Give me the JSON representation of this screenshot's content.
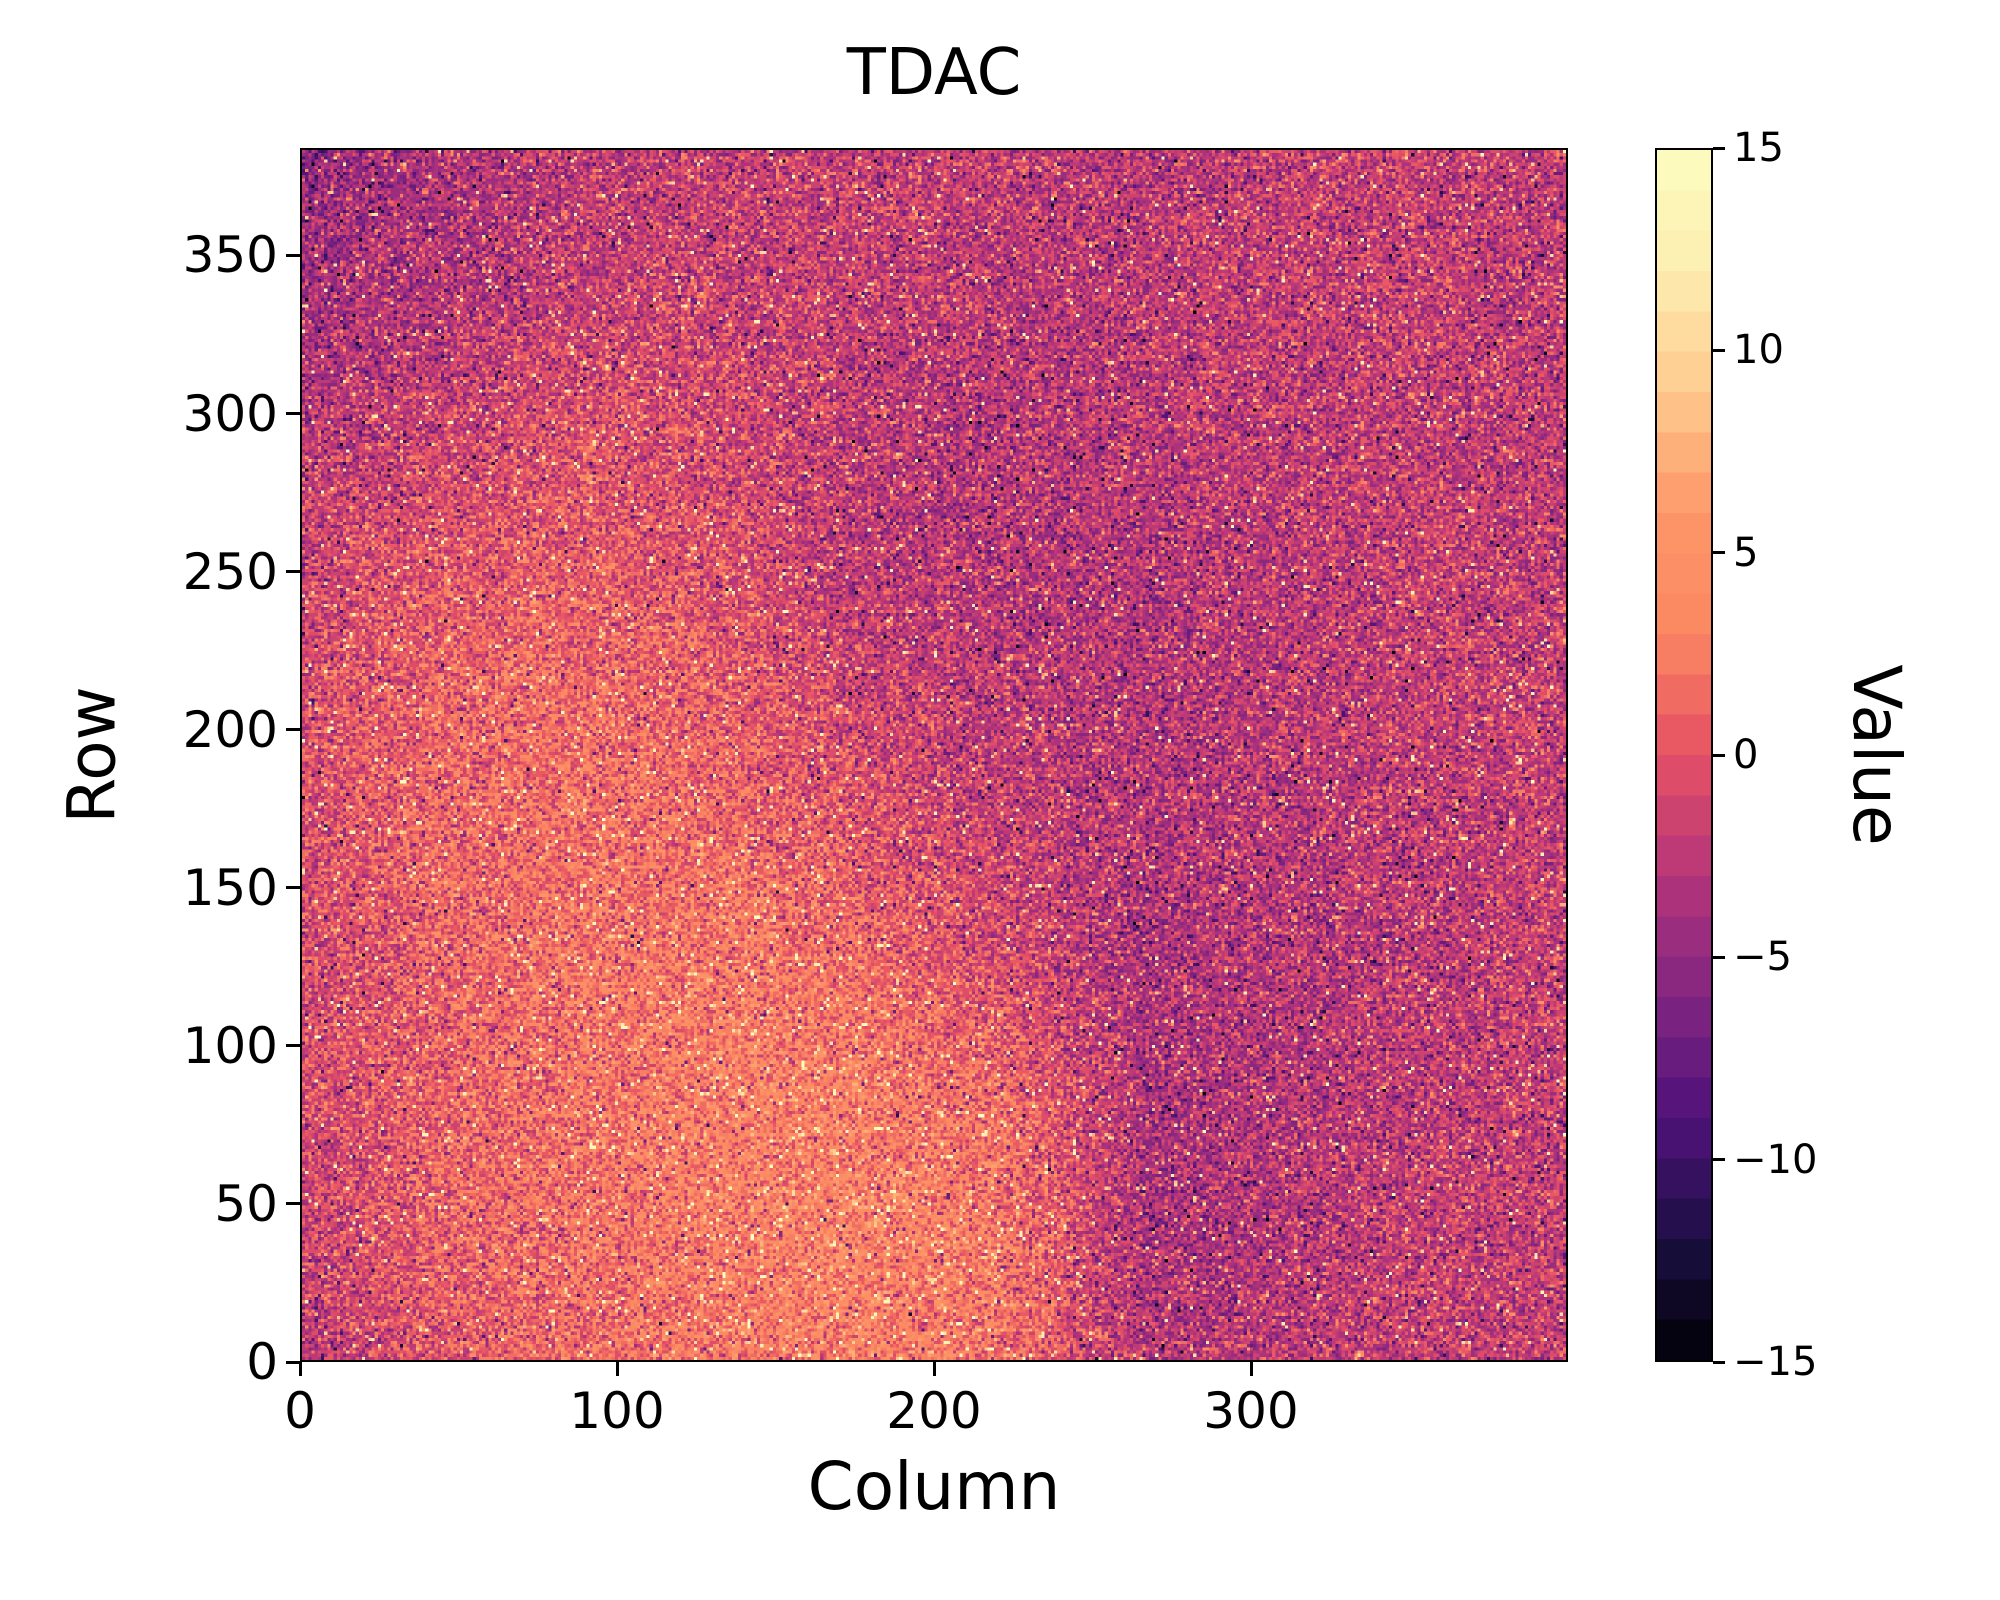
{
  "chart_data": {
    "type": "heatmap",
    "title": "TDAC",
    "xlabel": "Column",
    "ylabel": "Row",
    "colorbar_label": "Value",
    "x_range": [
      0,
      400
    ],
    "y_range": [
      0,
      384
    ],
    "x_ticks": [
      0,
      100,
      200,
      300
    ],
    "y_ticks": [
      0,
      50,
      100,
      150,
      200,
      250,
      300,
      350
    ],
    "colorbar_ticks": [
      15,
      10,
      5,
      0,
      -5,
      -10,
      -15
    ],
    "value_range": [
      -15,
      15
    ],
    "levels": 30,
    "colormap": "magma",
    "colormap_stops": [
      {
        "t": 0.0,
        "color": "#000004"
      },
      {
        "t": 0.1,
        "color": "#1c1044"
      },
      {
        "t": 0.2,
        "color": "#4f127b"
      },
      {
        "t": 0.3,
        "color": "#812581"
      },
      {
        "t": 0.4,
        "color": "#b5367a"
      },
      {
        "t": 0.5,
        "color": "#e55064"
      },
      {
        "t": 0.6,
        "color": "#fb8761"
      },
      {
        "t": 0.7,
        "color": "#fd9668"
      },
      {
        "t": 0.8,
        "color": "#feca8d"
      },
      {
        "t": 0.9,
        "color": "#fdedb0"
      },
      {
        "t": 1.0,
        "color": "#fcfdbf"
      }
    ],
    "grid_cols": 400,
    "grid_rows": 384,
    "coarse_field_note": "Approximate mean TDAC value per region; outer array lists row bands from Row=0 (bottom) to Row=384 (top), inner arrays list column bands from Column=0 (left) to Column=400 (right). Full-resolution map is this field plus per-pixel noise.",
    "coarse_field": [
      [
        -2.5,
        0.5,
        1.5,
        2.5,
        3.0,
        2.0,
        -3.0,
        -2.5,
        -2.0,
        -2.0
      ],
      [
        -1.5,
        1.0,
        2.0,
        3.0,
        3.5,
        2.5,
        -3.5,
        -3.0,
        -2.0,
        -2.0
      ],
      [
        -1.0,
        1.0,
        2.0,
        3.0,
        3.0,
        1.5,
        -3.5,
        -3.0,
        -2.5,
        -2.0
      ],
      [
        -1.0,
        1.0,
        2.0,
        2.5,
        1.5,
        -1.0,
        -3.5,
        -3.0,
        -2.5,
        -2.0
      ],
      [
        -0.5,
        1.5,
        2.0,
        1.5,
        0.0,
        -2.0,
        -3.0,
        -2.5,
        -2.5,
        -2.0
      ],
      [
        -0.5,
        1.0,
        1.5,
        0.5,
        -1.5,
        -2.5,
        -3.0,
        -2.5,
        -2.0,
        -2.0
      ],
      [
        -1.5,
        0.0,
        0.5,
        -0.5,
        -2.5,
        -3.0,
        -3.0,
        -2.5,
        -2.0,
        -2.5
      ],
      [
        -3.0,
        -1.5,
        -0.5,
        -1.0,
        -2.5,
        -3.0,
        -2.5,
        -2.5,
        -2.0,
        -2.5
      ],
      [
        -4.0,
        -3.0,
        -2.0,
        -1.5,
        -2.0,
        -2.5,
        -2.5,
        -2.0,
        -2.0,
        -2.5
      ],
      [
        -4.5,
        -3.5,
        -2.5,
        -2.0,
        -2.0,
        -2.0,
        -2.5,
        -2.0,
        -2.0,
        -2.5
      ]
    ],
    "noise_std": 2.5,
    "speckle_bright_prob": 0.04,
    "speckle_dark_prob": 0.03,
    "seed": 42,
    "legend_position": "right-colorbar",
    "grid": false
  }
}
